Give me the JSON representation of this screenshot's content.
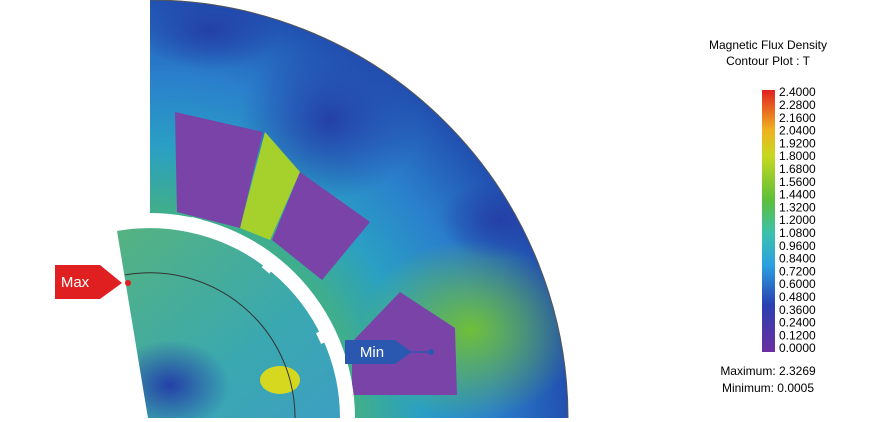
{
  "legend": {
    "title": [
      "Magnetic Flux Density",
      "Contour Plot : T"
    ],
    "labels": [
      "2.4000",
      "2.2800",
      "2.1600",
      "2.0400",
      "1.9200",
      "1.8000",
      "1.6800",
      "1.5600",
      "1.4400",
      "1.3200",
      "1.2000",
      "1.0800",
      "0.9600",
      "0.8400",
      "0.7200",
      "0.6000",
      "0.4800",
      "0.3600",
      "0.2400",
      "0.1200",
      "0.0000"
    ],
    "maximum": "Maximum: 2.3269",
    "minimum": "Minimum: 0.0005"
  },
  "markers": {
    "max": "Max",
    "min": "Min"
  }
}
